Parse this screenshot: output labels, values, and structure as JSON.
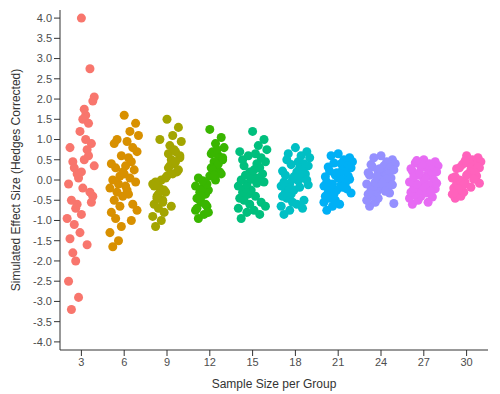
{
  "chart_data": {
    "type": "scatter",
    "x_label": "Sample Size per Group",
    "y_label": "Simulated Effect Size (Hedges Corrected)",
    "xlim": [
      1.5,
      31.5
    ],
    "ylim": [
      -4.2,
      4.2
    ],
    "xticks": [
      3,
      6,
      9,
      12,
      15,
      18,
      21,
      24,
      27,
      30
    ],
    "yticks": [
      {
        "value": -4,
        "label": "-4.0"
      },
      -3.5,
      {
        "value": -3,
        "label": "-3.0"
      },
      -2.5,
      {
        "value": -2,
        "label": "-2.0"
      },
      -1.5,
      {
        "value": -1,
        "label": "-1.0"
      },
      -0.5,
      {
        "value": 0,
        "label": "0.0"
      },
      0.5,
      {
        "value": 1,
        "label": "1.0"
      },
      1.5,
      {
        "value": 2,
        "label": "2.0"
      },
      2.5,
      {
        "value": 3,
        "label": "3.0"
      },
      3.5,
      {
        "value": 4,
        "label": "4.0"
      }
    ],
    "grid": false,
    "marker": "circle",
    "series": [
      {
        "color": "#F8766D",
        "x": [
          3.0,
          2.3,
          3.6,
          2.8,
          3.9,
          2.1,
          3.3,
          2.6,
          3.8,
          2.4,
          3.1,
          3.5,
          2.2,
          2.9,
          3.7,
          2.5,
          3.4,
          2.0,
          3.2,
          2.7,
          3.9,
          2.3,
          3.0,
          3.6,
          2.8,
          2.1,
          3.5,
          2.6,
          3.3,
          3.8,
          2.4,
          2.9,
          3.1,
          2.2,
          3.7,
          2.7,
          3.4,
          2.5,
          3.2,
          3.0
        ],
        "values": [
          4.0,
          -3.2,
          2.75,
          -2.9,
          2.05,
          -2.5,
          1.6,
          -2.0,
          1.95,
          -1.8,
          1.5,
          1.4,
          -1.45,
          1.2,
          0.9,
          -1.1,
          0.75,
          -0.95,
          0.5,
          -0.6,
          0.35,
          -0.5,
          0.2,
          -0.3,
          0.05,
          -0.1,
          0.6,
          -0.7,
          1.0,
          -0.4,
          0.45,
          -1.3,
          -0.2,
          0.8,
          -0.55,
          0.15,
          -1.6,
          0.3,
          1.75,
          -0.85
        ]
      },
      {
        "color": "#D89000",
        "x": [
          6.0,
          5.2,
          6.8,
          5.6,
          6.4,
          5.0,
          7.0,
          5.8,
          6.2,
          5.4,
          6.6,
          5.1,
          6.9,
          5.7,
          6.3,
          5.3,
          6.5,
          5.9,
          6.1,
          5.5,
          6.7,
          5.0,
          6.0,
          5.6,
          6.4,
          5.2,
          6.8,
          5.8,
          6.2,
          5.4,
          6.6,
          5.3,
          6.9,
          5.7,
          6.1,
          5.1,
          6.5,
          5.9,
          6.3,
          5.5
        ],
        "values": [
          1.6,
          -1.65,
          1.4,
          -1.5,
          1.2,
          -1.3,
          1.1,
          -1.15,
          0.95,
          -0.95,
          0.8,
          -0.8,
          0.7,
          -0.65,
          0.55,
          -0.5,
          0.45,
          -0.4,
          0.35,
          -0.3,
          0.25,
          -0.2,
          0.15,
          -0.1,
          0.05,
          0.0,
          -0.05,
          0.6,
          -0.25,
          0.3,
          -0.6,
          0.9,
          -0.75,
          0.1,
          -0.15,
          0.4,
          -1.0,
          0.2,
          -0.35,
          1.0
        ]
      },
      {
        "color": "#A3A500",
        "x": [
          9.0,
          8.2,
          9.8,
          8.6,
          9.4,
          8.0,
          10.0,
          8.8,
          9.2,
          8.4,
          9.6,
          8.1,
          9.9,
          8.7,
          9.3,
          8.3,
          9.5,
          8.9,
          9.1,
          8.5,
          9.7,
          8.0,
          9.0,
          8.6,
          9.4,
          8.2,
          9.8,
          8.8,
          9.2,
          8.4,
          9.6,
          8.3,
          9.9,
          8.7,
          9.1,
          8.1,
          9.5,
          8.9,
          9.3,
          8.5
        ],
        "values": [
          1.5,
          -1.15,
          1.3,
          -1.0,
          1.1,
          -0.9,
          0.95,
          -0.8,
          0.85,
          -0.7,
          0.7,
          -0.6,
          0.6,
          -0.5,
          0.5,
          -0.4,
          0.4,
          -0.3,
          0.3,
          -0.2,
          0.2,
          -0.1,
          0.1,
          0.0,
          0.15,
          -0.05,
          0.25,
          -0.25,
          0.35,
          -0.35,
          0.45,
          -0.45,
          0.55,
          -0.55,
          0.65,
          -0.15,
          0.75,
          0.05,
          -0.65,
          1.0
        ]
      },
      {
        "color": "#39B600",
        "x": [
          12.0,
          11.2,
          12.8,
          11.6,
          12.4,
          11.0,
          13.0,
          11.8,
          12.2,
          11.4,
          12.6,
          11.1,
          12.9,
          11.7,
          12.3,
          11.3,
          12.5,
          11.9,
          12.1,
          11.5,
          12.7,
          11.0,
          12.0,
          11.6,
          12.4,
          11.2,
          12.8,
          11.8,
          12.2,
          11.4,
          12.6,
          11.3,
          12.9,
          11.7,
          12.1,
          11.1,
          12.5,
          11.9,
          12.3,
          11.5
        ],
        "values": [
          1.25,
          -0.95,
          1.05,
          -0.85,
          0.9,
          -0.75,
          0.8,
          -0.65,
          0.7,
          -0.55,
          0.6,
          -0.45,
          0.5,
          -0.35,
          0.45,
          -0.3,
          0.35,
          -0.25,
          0.3,
          -0.2,
          0.2,
          -0.15,
          0.1,
          -0.05,
          0.0,
          0.05,
          0.15,
          -0.1,
          0.25,
          -0.4,
          0.4,
          -0.5,
          0.55,
          -0.6,
          0.65,
          -0.7,
          0.75,
          -0.8,
          0.12,
          -0.02
        ]
      },
      {
        "color": "#00BF7D",
        "x": [
          15.0,
          14.2,
          15.8,
          14.6,
          15.4,
          14.0,
          16.0,
          14.8,
          15.2,
          14.4,
          15.6,
          14.1,
          15.9,
          14.7,
          15.3,
          14.3,
          15.5,
          14.9,
          15.1,
          14.5,
          15.7,
          14.0,
          15.0,
          14.6,
          15.4,
          14.2,
          15.8,
          14.8,
          15.2,
          14.4,
          15.6,
          14.3,
          15.9,
          14.7,
          15.1,
          14.1,
          15.5,
          14.9,
          15.3,
          14.5
        ],
        "values": [
          1.2,
          -0.95,
          1.0,
          -0.8,
          0.85,
          -0.7,
          0.75,
          -0.6,
          0.65,
          -0.5,
          0.55,
          -0.45,
          0.45,
          -0.35,
          0.4,
          -0.3,
          0.3,
          -0.25,
          0.25,
          -0.2,
          0.15,
          -0.15,
          0.1,
          -0.1,
          0.05,
          0.0,
          -0.05,
          0.2,
          -0.4,
          0.35,
          -0.55,
          0.5,
          -0.65,
          0.6,
          -0.75,
          0.7,
          -0.85,
          0.02,
          -0.08,
          0.12
        ]
      },
      {
        "color": "#00BFC4",
        "x": [
          18.0,
          17.2,
          18.8,
          17.6,
          18.4,
          17.0,
          19.0,
          17.8,
          18.2,
          17.4,
          18.6,
          17.1,
          18.9,
          17.7,
          18.3,
          17.3,
          18.5,
          17.9,
          18.1,
          17.5,
          18.7,
          17.0,
          18.0,
          17.6,
          18.4,
          17.2,
          18.8,
          17.8,
          18.2,
          17.4,
          18.6,
          17.3,
          18.9,
          17.7,
          18.1,
          17.1,
          18.5,
          17.9,
          18.3,
          17.5
        ],
        "values": [
          0.8,
          -0.85,
          0.7,
          -0.75,
          0.6,
          -0.65,
          0.55,
          -0.55,
          0.45,
          -0.45,
          0.4,
          -0.4,
          0.35,
          -0.35,
          0.3,
          -0.3,
          0.25,
          -0.25,
          0.2,
          -0.2,
          0.15,
          -0.15,
          0.1,
          -0.1,
          0.05,
          -0.05,
          0.0,
          0.02,
          -0.02,
          0.5,
          -0.5,
          0.12,
          -0.12,
          0.38,
          -0.6,
          0.22,
          -0.7,
          0.08,
          -0.18,
          0.65
        ]
      },
      {
        "color": "#00B0F6",
        "x": [
          21.0,
          20.2,
          21.8,
          20.6,
          21.4,
          20.0,
          22.0,
          20.8,
          21.2,
          20.4,
          21.6,
          20.1,
          21.9,
          20.7,
          21.3,
          20.3,
          21.5,
          20.9,
          21.1,
          20.5,
          21.7,
          20.0,
          21.0,
          20.6,
          21.4,
          20.2,
          21.8,
          20.8,
          21.2,
          20.4,
          21.6,
          20.3,
          21.9,
          20.7,
          21.1,
          20.1,
          21.5,
          20.9,
          21.3,
          20.5
        ],
        "values": [
          0.65,
          -0.75,
          0.55,
          -0.65,
          0.5,
          -0.55,
          0.45,
          -0.5,
          0.4,
          -0.45,
          0.35,
          -0.4,
          0.3,
          -0.35,
          0.25,
          -0.3,
          0.2,
          -0.25,
          0.15,
          -0.2,
          0.1,
          -0.15,
          0.05,
          -0.1,
          0.0,
          -0.05,
          0.02,
          0.12,
          -0.12,
          0.22,
          -0.22,
          0.32,
          -0.32,
          0.42,
          -0.6,
          0.08,
          -0.08,
          0.18,
          -0.18,
          0.6
        ]
      },
      {
        "color": "#9590FF",
        "x": [
          24.0,
          23.2,
          24.8,
          23.6,
          24.4,
          23.0,
          25.0,
          23.8,
          24.2,
          23.4,
          24.6,
          23.1,
          24.9,
          23.7,
          24.3,
          23.3,
          24.5,
          23.9,
          24.1,
          23.5,
          24.7,
          23.0,
          24.0,
          23.6,
          24.4,
          23.2,
          24.8,
          23.8,
          24.2,
          23.4,
          24.6,
          23.3,
          24.9,
          23.7,
          24.1,
          23.1,
          24.5,
          23.9,
          24.3,
          23.5
        ],
        "values": [
          0.6,
          -0.65,
          0.5,
          -0.55,
          0.45,
          -0.5,
          0.4,
          -0.45,
          0.35,
          -0.4,
          0.3,
          -0.35,
          0.25,
          -0.3,
          0.2,
          -0.25,
          0.15,
          -0.2,
          0.1,
          -0.15,
          0.05,
          -0.1,
          0.0,
          -0.05,
          0.02,
          0.12,
          -0.12,
          0.22,
          -0.22,
          0.32,
          -0.32,
          0.38,
          -0.58,
          0.08,
          -0.08,
          0.18,
          -0.18,
          0.28,
          -0.28,
          0.55
        ]
      },
      {
        "color": "#E76BF3",
        "x": [
          27.0,
          26.2,
          27.8,
          26.6,
          27.4,
          26.0,
          28.0,
          26.8,
          27.2,
          26.4,
          27.6,
          26.1,
          27.9,
          26.7,
          27.3,
          26.3,
          27.5,
          26.9,
          27.1,
          26.5,
          27.7,
          26.0,
          27.0,
          26.6,
          27.4,
          26.2,
          27.8,
          26.8,
          27.2,
          26.4,
          27.6,
          26.3,
          27.9,
          26.7,
          27.1,
          26.1,
          27.5,
          26.9,
          27.3,
          26.5
        ],
        "values": [
          0.5,
          -0.6,
          0.45,
          -0.5,
          0.4,
          -0.45,
          0.35,
          -0.4,
          0.3,
          -0.35,
          0.25,
          -0.3,
          0.2,
          -0.25,
          0.15,
          -0.2,
          0.1,
          -0.15,
          0.05,
          -0.1,
          0.0,
          -0.05,
          0.02,
          0.12,
          -0.12,
          0.22,
          -0.22,
          0.32,
          -0.32,
          0.42,
          -0.42,
          0.08,
          -0.08,
          0.18,
          -0.18,
          0.28,
          -0.28,
          0.38,
          -0.55,
          0.48
        ]
      },
      {
        "color": "#FF62BC",
        "x": [
          30.0,
          29.2,
          30.8,
          29.6,
          30.4,
          29.0,
          31.0,
          29.8,
          30.2,
          29.4,
          30.6,
          29.1,
          30.9,
          29.7,
          30.3,
          29.3,
          30.5,
          29.9,
          30.1,
          29.5,
          30.7,
          29.0,
          30.0,
          29.6,
          30.4,
          29.2,
          30.8,
          29.8,
          30.2,
          29.4,
          30.6,
          29.3,
          30.9,
          29.7,
          30.1,
          29.1,
          30.5,
          29.9,
          30.3,
          29.5
        ],
        "values": [
          0.6,
          -0.45,
          0.55,
          -0.4,
          0.5,
          -0.35,
          0.45,
          -0.3,
          0.4,
          -0.25,
          0.35,
          -0.2,
          0.3,
          -0.15,
          0.25,
          -0.1,
          0.2,
          -0.05,
          0.15,
          0.0,
          0.1,
          0.05,
          0.12,
          -0.02,
          0.22,
          0.08,
          0.32,
          -0.12,
          0.42,
          -0.22,
          0.18,
          0.28,
          -0.08,
          0.38,
          0.52,
          -0.32,
          0.02,
          0.48,
          -0.18,
          0.3
        ]
      }
    ]
  }
}
